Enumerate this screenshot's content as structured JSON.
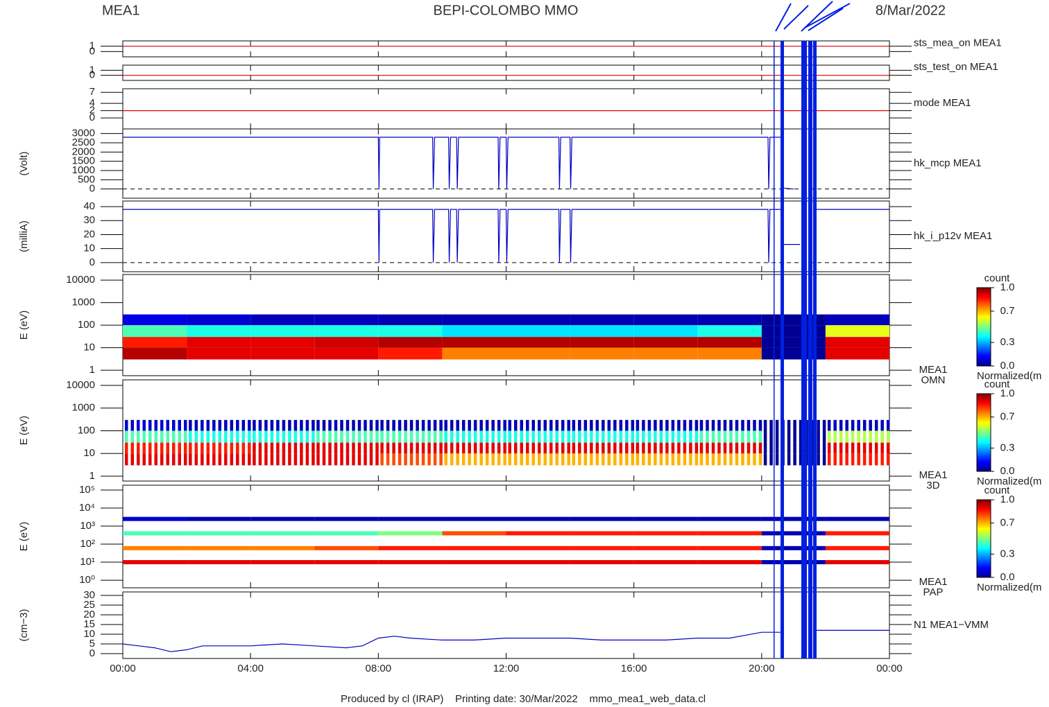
{
  "header": {
    "left": "MEA1",
    "center": "BEPI-COLOMBO MMO",
    "right": "8/Mar/2022"
  },
  "footer": "Produced by cl (IRAP)    Printing date: 30/Mar/2022    mmo_mea1_web_data.cl",
  "chart_data": [
    {
      "type": "line",
      "label": "sts_mea_on MEA1",
      "color": "#e00000",
      "ylim": [
        -1,
        2
      ],
      "yticks": [
        0,
        1
      ],
      "x": [
        0,
        24
      ],
      "values": [
        1,
        1
      ]
    },
    {
      "type": "line",
      "label": "sts_test_on MEA1",
      "color": "#e00000",
      "ylim": [
        -1,
        2
      ],
      "yticks": [
        0,
        1
      ],
      "x": [
        0,
        24
      ],
      "values": [
        0,
        0
      ]
    },
    {
      "type": "line",
      "label": "mode MEA1",
      "color": "#e00000",
      "ylim": [
        -3,
        8
      ],
      "yticks": [
        0,
        2,
        4,
        7
      ],
      "x": [
        0,
        24
      ],
      "values": [
        2,
        2
      ]
    },
    {
      "type": "line",
      "label": "hk_mcp MEA1",
      "ylabel": "(Volt)",
      "color": "#0000c0",
      "ylim": [
        -500,
        3250
      ],
      "yticks": [
        0,
        500,
        1000,
        1500,
        2000,
        2500,
        3000
      ],
      "x": [
        0,
        8.0,
        8.02,
        8.04,
        9.7,
        9.72,
        9.76,
        10.2,
        10.22,
        10.26,
        10.45,
        10.47,
        10.51,
        11.75,
        11.77,
        11.81,
        12.0,
        12.02,
        12.06,
        13.65,
        13.67,
        13.71,
        14.0,
        14.02,
        14.06,
        20.2,
        20.22,
        20.26,
        20.62,
        20.64,
        21.0
      ],
      "values": [
        2800,
        2800,
        0,
        2800,
        2800,
        0,
        2800,
        2800,
        0,
        2800,
        2800,
        0,
        2800,
        2800,
        0,
        2800,
        2800,
        0,
        2800,
        2800,
        0,
        2800,
        2800,
        0,
        2800,
        2800,
        0,
        2800,
        2800,
        50,
        0
      ]
    },
    {
      "type": "line",
      "label": "hk_i_p12v MEA1",
      "ylabel": "(milliA)",
      "color": "#0000c0",
      "ylim": [
        -6.5,
        44
      ],
      "yticks": [
        0,
        10,
        20,
        30,
        40
      ],
      "x": [
        0,
        8.0,
        8.02,
        8.04,
        9.7,
        9.72,
        9.76,
        10.2,
        10.22,
        10.26,
        10.45,
        10.47,
        10.51,
        11.75,
        11.77,
        11.81,
        12.0,
        12.02,
        12.06,
        13.65,
        13.67,
        13.71,
        14.0,
        14.02,
        14.06,
        20.2,
        20.22,
        20.26,
        20.62,
        20.64,
        20.7,
        21.2,
        21.3,
        21.65,
        21.7,
        24
      ],
      "values": [
        38,
        38,
        0,
        38,
        38,
        0,
        38,
        38,
        0,
        38,
        38,
        0,
        38,
        38,
        0,
        38,
        38,
        0,
        38,
        38,
        0,
        38,
        38,
        0,
        38,
        38,
        0,
        38,
        38,
        13,
        13,
        13,
        null,
        37,
        38,
        38
      ]
    },
    {
      "type": "heatmap",
      "label": [
        "MEA1",
        "OMN"
      ],
      "ylabel": "E (eV)",
      "log": true,
      "ylim": [
        0.57,
        17800
      ],
      "yticks": [
        1,
        10,
        100,
        1000,
        10000
      ],
      "x_edges": [
        0,
        2,
        4,
        6,
        8,
        10,
        12,
        14,
        16,
        18,
        20,
        22,
        24
      ],
      "y_edges": [
        3,
        10,
        30,
        100,
        300
      ],
      "values": [
        [
          0.95,
          0.9,
          0.9,
          0.9,
          0.85,
          0.75,
          0.75,
          0.75,
          0.75,
          0.75,
          0.02,
          0.9
        ],
        [
          0.85,
          0.9,
          0.9,
          0.92,
          0.95,
          0.95,
          0.95,
          0.95,
          0.95,
          0.95,
          0.02,
          0.9
        ],
        [
          0.45,
          0.4,
          0.4,
          0.4,
          0.4,
          0.35,
          0.35,
          0.35,
          0.35,
          0.4,
          0.02,
          0.6
        ],
        [
          0.1,
          0.08,
          0.06,
          0.06,
          0.05,
          0.05,
          0.05,
          0.05,
          0.05,
          0.05,
          0.02,
          0.06
        ]
      ],
      "colorbar": {
        "title": "count",
        "ticks": [
          {
            "value": 1,
            "label": "1.0"
          },
          {
            "value": 0.7,
            "label": "0.7"
          },
          {
            "value": 0.3,
            "label": "0.3"
          },
          {
            "value": 0,
            "label": "0.0"
          }
        ],
        "label": "Normalized(m"
      }
    },
    {
      "type": "heatmap",
      "striped": true,
      "label": [
        "MEA1",
        "3D"
      ],
      "ylabel": "E (eV)",
      "log": true,
      "ylim": [
        0.61,
        17500
      ],
      "yticks": [
        1,
        10,
        100,
        1000,
        10000
      ],
      "x_edges": [
        0,
        2,
        4,
        6,
        8,
        10,
        12,
        14,
        16,
        18,
        20,
        22,
        24
      ],
      "y_edges": [
        3,
        10,
        30,
        100,
        300
      ],
      "values": [
        [
          0.9,
          0.9,
          0.9,
          0.9,
          0.8,
          0.7,
          0.7,
          0.7,
          0.7,
          0.7,
          0.02,
          0.85
        ],
        [
          0.85,
          0.85,
          0.9,
          0.9,
          0.9,
          0.9,
          0.9,
          0.9,
          0.9,
          0.9,
          0.02,
          0.9
        ],
        [
          0.45,
          0.4,
          0.4,
          0.45,
          0.45,
          0.4,
          0.4,
          0.4,
          0.4,
          0.45,
          0.02,
          0.55
        ],
        [
          0.08,
          0.06,
          0.05,
          0.05,
          0.05,
          0.05,
          0.05,
          0.05,
          0.05,
          0.05,
          0.02,
          0.06
        ]
      ],
      "colorbar": {
        "title": "count",
        "ticks": [
          {
            "value": 1,
            "label": "1.0"
          },
          {
            "value": 0.7,
            "label": "0.7"
          },
          {
            "value": 0.3,
            "label": "0.3"
          },
          {
            "value": 0,
            "label": "0.0"
          }
        ],
        "label": "Normalized(m"
      }
    },
    {
      "type": "bands",
      "label": [
        "MEA1",
        "PAP"
      ],
      "ylabel": "E (eV)",
      "log": true,
      "ylim": [
        0.38,
        186000
      ],
      "yticks": [
        {
          "value": 1,
          "label": "10⁰"
        },
        {
          "value": 10,
          "label": "10¹"
        },
        {
          "value": 100,
          "label": "10²"
        },
        {
          "value": 1000,
          "label": "10³"
        },
        {
          "value": 10000,
          "label": "10⁴"
        },
        {
          "value": 100000,
          "label": "10⁵"
        }
      ],
      "x_edges": [
        0,
        2,
        4,
        6,
        8,
        10,
        12,
        14,
        16,
        18,
        20,
        22,
        24
      ],
      "energies": [
        10,
        60,
        400,
        2500
      ],
      "values": [
        [
          0.9,
          0.9,
          0.9,
          0.9,
          0.9,
          0.9,
          0.9,
          0.9,
          0.9,
          0.9,
          0.05,
          0.9
        ],
        [
          0.75,
          0.75,
          0.75,
          0.8,
          0.85,
          0.85,
          0.85,
          0.85,
          0.85,
          0.85,
          0.05,
          0.85
        ],
        [
          0.45,
          0.45,
          0.45,
          0.45,
          0.5,
          0.8,
          0.85,
          0.85,
          0.85,
          0.85,
          0.05,
          0.85
        ],
        [
          0.08,
          0.05,
          0.05,
          0.05,
          0.05,
          0.05,
          0.05,
          0.05,
          0.05,
          0.05,
          0.05,
          0.05
        ]
      ],
      "colorbar": {
        "title": "count",
        "ticks": [
          {
            "value": 1,
            "label": "1.0"
          },
          {
            "value": 0.7,
            "label": "0.7"
          },
          {
            "value": 0.3,
            "label": "0.3"
          },
          {
            "value": 0,
            "label": "0.0"
          }
        ],
        "label": "Normalized(m"
      }
    },
    {
      "type": "line",
      "label": "N1 MEA1−VMM",
      "ylabel": "(cm−3)",
      "color": "#0000c0",
      "ylim": [
        -2.5,
        31.8
      ],
      "yticks": [
        0,
        5,
        10,
        15,
        20,
        25,
        30
      ],
      "xlim": [
        0,
        24
      ],
      "xticks": [
        {
          "value": 0,
          "label": "00:00"
        },
        {
          "value": 4,
          "label": "04:00"
        },
        {
          "value": 8,
          "label": "08:00"
        },
        {
          "value": 12,
          "label": "12:00"
        },
        {
          "value": 16,
          "label": "16:00"
        },
        {
          "value": 20,
          "label": "20:00"
        },
        {
          "value": 24,
          "label": "00:00"
        }
      ],
      "x": [
        0,
        0.5,
        1,
        1.5,
        2,
        2.5,
        3,
        4,
        5,
        6,
        7,
        7.5,
        8,
        8.5,
        9,
        10,
        11,
        12,
        13,
        14,
        15,
        16,
        17,
        18,
        19,
        20,
        20.6,
        21,
        21.7,
        22,
        23,
        24
      ],
      "values": [
        5,
        4,
        3,
        1,
        2,
        4,
        4,
        4,
        5,
        4,
        3,
        4,
        8,
        9,
        8,
        7,
        7,
        8,
        8,
        8,
        7,
        7,
        7,
        8,
        8,
        11,
        11,
        null,
        12,
        12,
        12,
        12
      ]
    }
  ]
}
